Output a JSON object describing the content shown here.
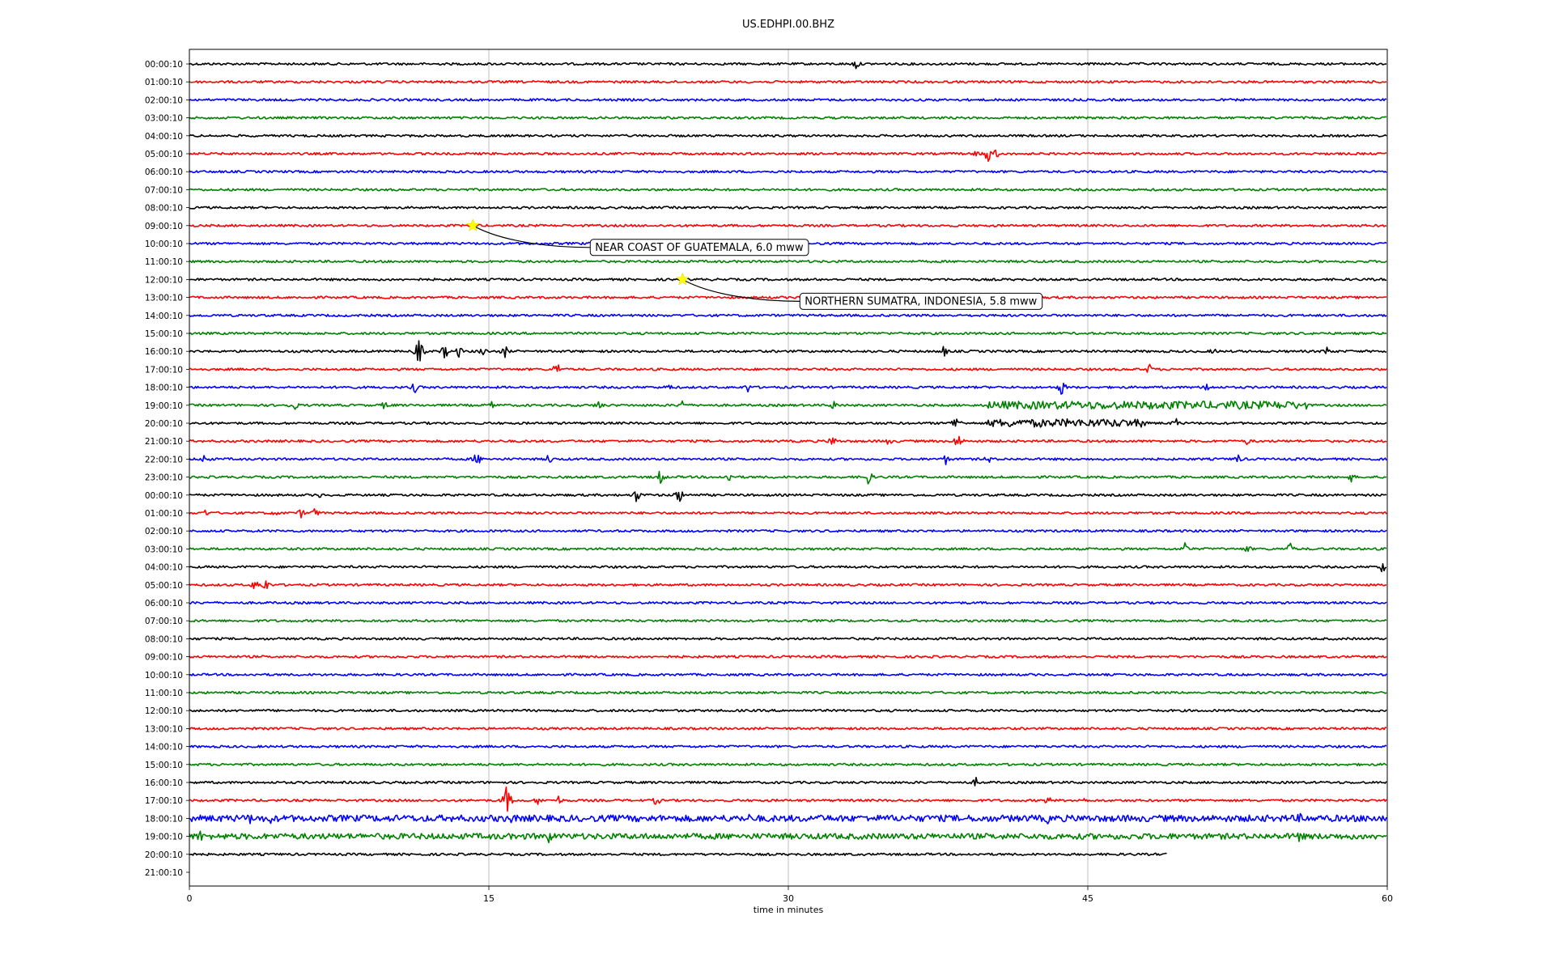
{
  "chart_data": {
    "type": "line",
    "title": "US.EDHPI.00.BHZ",
    "xlabel": "time in minutes",
    "ylabel": "",
    "xlim": [
      0,
      60
    ],
    "xticks": [
      0,
      15,
      30,
      45,
      60
    ],
    "xtick_labels": [
      "0",
      "15",
      "30",
      "45",
      "60"
    ],
    "grid": true,
    "colors": [
      "#000000",
      "#ff0000",
      "#0000ff",
      "#008000"
    ],
    "row_labels": [
      "00:00:10",
      "01:00:10",
      "02:00:10",
      "03:00:10",
      "04:00:10",
      "05:00:10",
      "06:00:10",
      "07:00:10",
      "08:00:10",
      "09:00:10",
      "10:00:10",
      "11:00:10",
      "12:00:10",
      "13:00:10",
      "14:00:10",
      "15:00:10",
      "16:00:10",
      "17:00:10",
      "18:00:10",
      "19:00:10",
      "20:00:10",
      "21:00:10",
      "22:00:10",
      "23:00:10",
      "00:00:10",
      "01:00:10",
      "02:00:10",
      "03:00:10",
      "04:00:10",
      "05:00:10",
      "06:00:10",
      "07:00:10",
      "08:00:10",
      "09:00:10",
      "10:00:10",
      "11:00:10",
      "12:00:10",
      "13:00:10",
      "14:00:10",
      "15:00:10",
      "16:00:10",
      "17:00:10",
      "18:00:10",
      "19:00:10",
      "20:00:10",
      "21:00:10"
    ],
    "last_trace_end_minute": 49,
    "bursts": [
      {
        "row": 0,
        "minute": 33.4,
        "amp": 0.35
      },
      {
        "row": 5,
        "minute": 39.5,
        "amp": 0.35
      },
      {
        "row": 5,
        "minute": 40.0,
        "amp": 0.55
      },
      {
        "row": 5,
        "minute": 40.4,
        "amp": 0.3
      },
      {
        "row": 16,
        "minute": 11.5,
        "amp": 0.8
      },
      {
        "row": 16,
        "minute": 12.8,
        "amp": 0.45
      },
      {
        "row": 16,
        "minute": 13.5,
        "amp": 0.35
      },
      {
        "row": 16,
        "minute": 14.7,
        "amp": 0.35
      },
      {
        "row": 16,
        "minute": 15.8,
        "amp": 0.4
      },
      {
        "row": 16,
        "minute": 37.8,
        "amp": 0.35
      },
      {
        "row": 16,
        "minute": 51.3,
        "amp": 0.25
      },
      {
        "row": 16,
        "minute": 57.0,
        "amp": 0.35
      },
      {
        "row": 17,
        "minute": 18.4,
        "amp": 0.5
      },
      {
        "row": 17,
        "minute": 48.1,
        "amp": 0.35
      },
      {
        "row": 18,
        "minute": 7.9,
        "amp": 0.3
      },
      {
        "row": 18,
        "minute": 11.3,
        "amp": 0.35
      },
      {
        "row": 18,
        "minute": 24.0,
        "amp": 0.3
      },
      {
        "row": 18,
        "minute": 28.0,
        "amp": 0.35
      },
      {
        "row": 18,
        "minute": 43.7,
        "amp": 0.5
      },
      {
        "row": 18,
        "minute": 51.0,
        "amp": 0.4
      },
      {
        "row": 19,
        "minute": 5.2,
        "amp": 0.45
      },
      {
        "row": 19,
        "minute": 9.8,
        "amp": 0.3
      },
      {
        "row": 19,
        "minute": 15.2,
        "amp": 0.3
      },
      {
        "row": 19,
        "minute": 20.5,
        "amp": 0.35
      },
      {
        "row": 19,
        "minute": 24.7,
        "amp": 0.35
      },
      {
        "row": 19,
        "minute": 32.3,
        "amp": 0.35
      },
      {
        "row": 19,
        "minute": 45.8,
        "amp": 0.35
      },
      {
        "row": 20,
        "minute": 38.4,
        "amp": 0.55
      },
      {
        "row": 20,
        "minute": 44.0,
        "amp": 0.3
      },
      {
        "row": 20,
        "minute": 49.4,
        "amp": 0.35
      },
      {
        "row": 21,
        "minute": 32.2,
        "amp": 0.4
      },
      {
        "row": 21,
        "minute": 35.0,
        "amp": 0.3
      },
      {
        "row": 21,
        "minute": 38.5,
        "amp": 0.55
      },
      {
        "row": 21,
        "minute": 53.0,
        "amp": 0.25
      },
      {
        "row": 22,
        "minute": 0.8,
        "amp": 0.4
      },
      {
        "row": 22,
        "minute": 14.4,
        "amp": 0.5
      },
      {
        "row": 22,
        "minute": 18.0,
        "amp": 0.35
      },
      {
        "row": 22,
        "minute": 37.9,
        "amp": 0.35
      },
      {
        "row": 22,
        "minute": 40.0,
        "amp": 0.3
      },
      {
        "row": 22,
        "minute": 52.5,
        "amp": 0.35
      },
      {
        "row": 23,
        "minute": 23.6,
        "amp": 0.5
      },
      {
        "row": 23,
        "minute": 27.0,
        "amp": 0.35
      },
      {
        "row": 23,
        "minute": 34.0,
        "amp": 0.5
      },
      {
        "row": 23,
        "minute": 58.2,
        "amp": 0.3
      },
      {
        "row": 24,
        "minute": 6.5,
        "amp": 0.2
      },
      {
        "row": 24,
        "minute": 22.4,
        "amp": 0.45
      },
      {
        "row": 24,
        "minute": 24.5,
        "amp": 0.55
      },
      {
        "row": 25,
        "minute": 0.8,
        "amp": 0.25
      },
      {
        "row": 25,
        "minute": 4.3,
        "amp": 0.25
      },
      {
        "row": 25,
        "minute": 5.6,
        "amp": 0.3
      },
      {
        "row": 25,
        "minute": 6.3,
        "amp": 0.35
      },
      {
        "row": 27,
        "minute": 49.9,
        "amp": 0.45
      },
      {
        "row": 27,
        "minute": 53.0,
        "amp": 0.3
      },
      {
        "row": 27,
        "minute": 55.1,
        "amp": 0.45
      },
      {
        "row": 28,
        "minute": 59.8,
        "amp": 0.45
      },
      {
        "row": 29,
        "minute": 3.3,
        "amp": 0.4
      },
      {
        "row": 29,
        "minute": 3.8,
        "amp": 0.45
      },
      {
        "row": 40,
        "minute": 39.4,
        "amp": 0.3
      },
      {
        "row": 41,
        "minute": 15.9,
        "amp": 0.9
      },
      {
        "row": 41,
        "minute": 17.5,
        "amp": 0.35
      },
      {
        "row": 41,
        "minute": 18.5,
        "amp": 0.3
      },
      {
        "row": 41,
        "minute": 23.4,
        "amp": 0.35
      },
      {
        "row": 41,
        "minute": 43.0,
        "amp": 0.3
      },
      {
        "row": 41,
        "minute": 44.7,
        "amp": 0.3
      },
      {
        "row": 42,
        "minute": 3.0,
        "amp": 0.4
      },
      {
        "row": 42,
        "minute": 4.1,
        "amp": 0.35
      },
      {
        "row": 42,
        "minute": 16.2,
        "amp": 0.45
      },
      {
        "row": 42,
        "minute": 28.0,
        "amp": 0.3
      },
      {
        "row": 42,
        "minute": 43.0,
        "amp": 0.35
      },
      {
        "row": 42,
        "minute": 55.6,
        "amp": 0.35
      },
      {
        "row": 42,
        "minute": 59.0,
        "amp": 0.35
      },
      {
        "row": 43,
        "minute": 0.5,
        "amp": 0.5
      },
      {
        "row": 43,
        "minute": 18.0,
        "amp": 0.45
      },
      {
        "row": 43,
        "minute": 55.6,
        "amp": 0.45
      }
    ],
    "noisy_segments": [
      {
        "row": 19,
        "start": 40.0,
        "end": 56.0,
        "amp": 0.22
      },
      {
        "row": 20,
        "start": 40.0,
        "end": 48.0,
        "amp": 0.22
      },
      {
        "row": 42,
        "start": 0.0,
        "end": 60.0,
        "amp": 0.18
      },
      {
        "row": 43,
        "start": 0.0,
        "end": 60.0,
        "amp": 0.16
      }
    ],
    "annotations": [
      {
        "label": "NEAR COAST OF GUATEMALA, 6.0 mww",
        "row": 9,
        "minute": 14.2
      },
      {
        "label": "NORTHERN SUMATRA, INDONESIA, 5.8 mww",
        "row": 12,
        "minute": 24.7
      }
    ]
  }
}
